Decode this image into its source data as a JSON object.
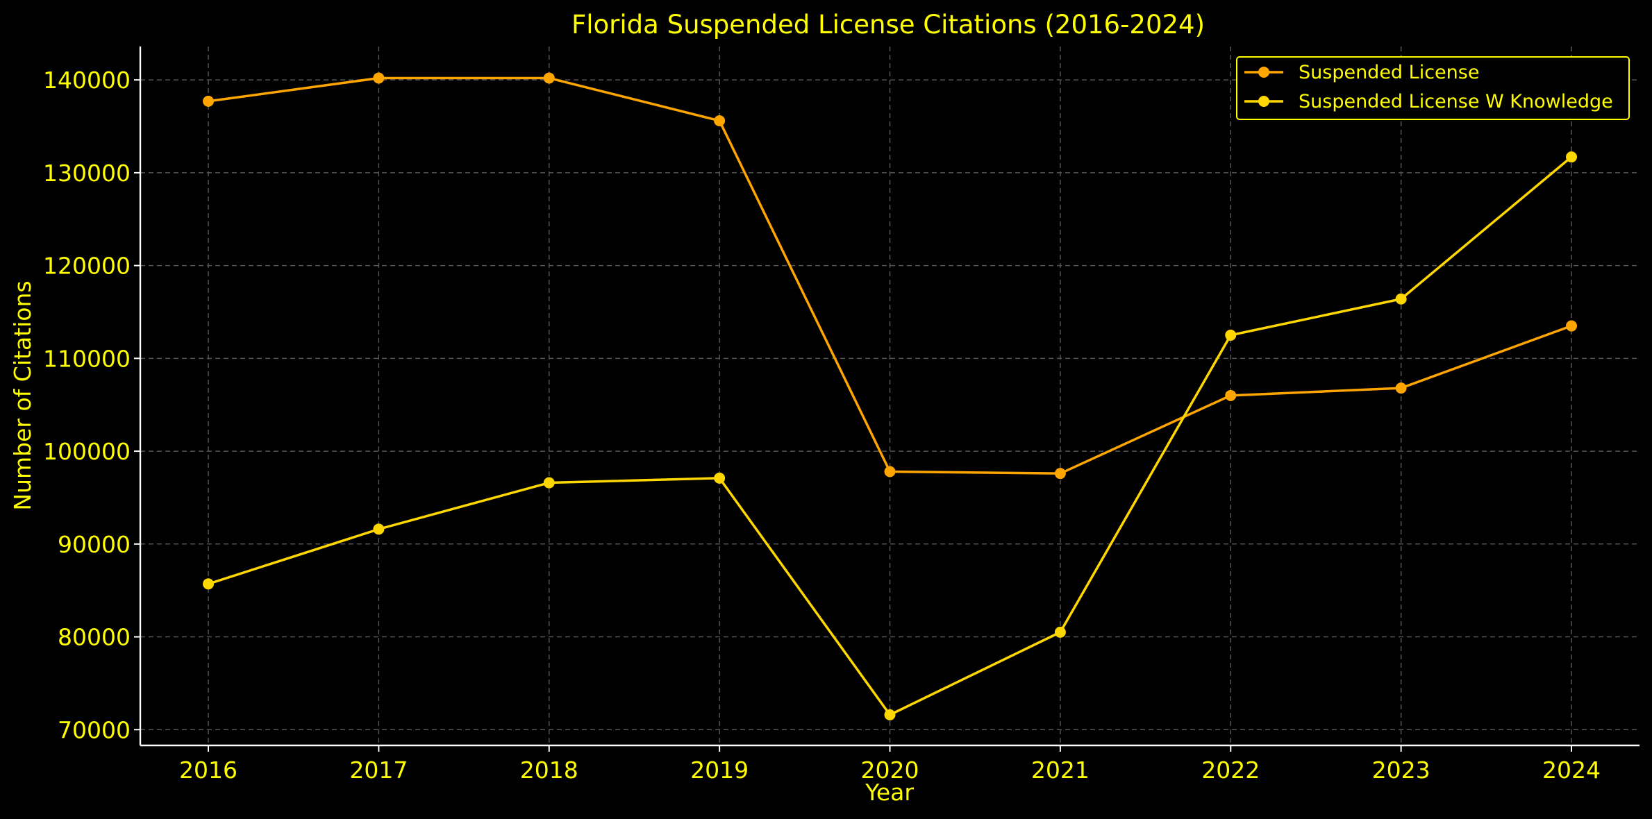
{
  "chart_data": {
    "type": "line",
    "title": "Florida Suspended License Citations (2016-2024)",
    "xlabel": "Year",
    "ylabel": "Number of Citations",
    "x": [
      2016,
      2017,
      2018,
      2019,
      2020,
      2021,
      2022,
      2023,
      2024
    ],
    "yticks": [
      70000,
      80000,
      90000,
      100000,
      110000,
      120000,
      130000,
      140000
    ],
    "ylim": [
      68300,
      143600
    ],
    "grid": true,
    "legend_position": "top-right",
    "series": [
      {
        "name": "Suspended License",
        "color": "#ffa500",
        "marker": "circle",
        "values": [
          137700,
          140200,
          140200,
          135600,
          97800,
          97600,
          106000,
          106800,
          113500
        ]
      },
      {
        "name": "Suspended License W Knowledge",
        "color": "#ffd700",
        "marker": "circle",
        "values": [
          85700,
          91600,
          96600,
          97100,
          71600,
          80500,
          112500,
          116400,
          131700
        ]
      }
    ]
  },
  "colors": {
    "background": "#000000",
    "text": "#ffff00",
    "grid": "#555555",
    "spine": "#ffffff"
  }
}
